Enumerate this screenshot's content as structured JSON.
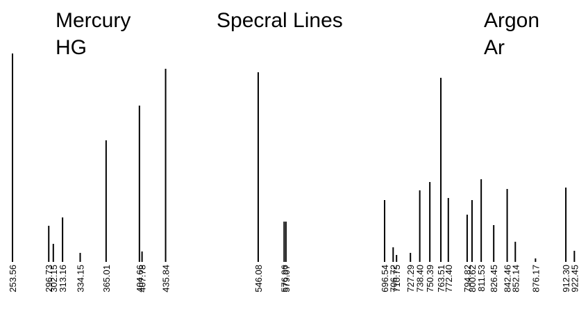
{
  "chart_data": {
    "type": "bar",
    "title": "Specral Lines",
    "xlabel": "",
    "ylabel": "",
    "grid": false,
    "legend": "none",
    "groups": [
      {
        "name": "Mercury",
        "symbol": "HG"
      },
      {
        "name": "Argon",
        "symbol": "Ar"
      }
    ],
    "series": [
      {
        "group": "HG",
        "lines": [
          {
            "label": "253.56",
            "x": 253.56,
            "intensity": 300
          },
          {
            "label": "296.73",
            "x": 296.73,
            "intensity": 52
          },
          {
            "label": "302.15",
            "x": 302.15,
            "intensity": 26
          },
          {
            "label": "313.16",
            "x": 313.16,
            "intensity": 64
          },
          {
            "label": "334.15",
            "x": 334.15,
            "intensity": 13
          },
          {
            "label": "365.01",
            "x": 365.01,
            "intensity": 175
          },
          {
            "label": "404.66",
            "x": 404.66,
            "intensity": 225
          },
          {
            "label": "407.78",
            "x": 407.78,
            "intensity": 15
          },
          {
            "label": "435.84",
            "x": 435.84,
            "intensity": 278
          }
        ]
      },
      {
        "group": "HG",
        "lines": [
          {
            "label": "546.08",
            "x": 546.08,
            "intensity": 273
          },
          {
            "label": "576.96",
            "x": 576.96,
            "intensity": 58
          },
          {
            "label": "579.07",
            "x": 579.07,
            "intensity": 58
          }
        ]
      },
      {
        "group": "Ar",
        "lines": [
          {
            "label": "696.54",
            "x": 696.54,
            "intensity": 89
          },
          {
            "label": "706.72",
            "x": 706.72,
            "intensity": 21
          },
          {
            "label": "710.75",
            "x": 710.75,
            "intensity": 10
          },
          {
            "label": "727.29",
            "x": 727.29,
            "intensity": 13
          },
          {
            "label": "738.40",
            "x": 738.4,
            "intensity": 103
          },
          {
            "label": "750.39",
            "x": 750.39,
            "intensity": 115
          },
          {
            "label": "763.51",
            "x": 763.51,
            "intensity": 265
          },
          {
            "label": "772.40",
            "x": 772.4,
            "intensity": 92
          },
          {
            "label": "794.82",
            "x": 794.82,
            "intensity": 68
          },
          {
            "label": "800.62",
            "x": 800.62,
            "intensity": 89
          },
          {
            "label": "811.53",
            "x": 811.53,
            "intensity": 119
          },
          {
            "label": "826.45",
            "x": 826.45,
            "intensity": 53
          },
          {
            "label": "842.46",
            "x": 842.46,
            "intensity": 105
          },
          {
            "label": "852.14",
            "x": 852.14,
            "intensity": 29
          },
          {
            "label": "876.17",
            "x": 876.17,
            "intensity": 5
          },
          {
            "label": "912.30",
            "x": 912.3,
            "intensity": 107
          },
          {
            "label": "922.45",
            "x": 922.45,
            "intensity": 16
          }
        ]
      }
    ]
  }
}
